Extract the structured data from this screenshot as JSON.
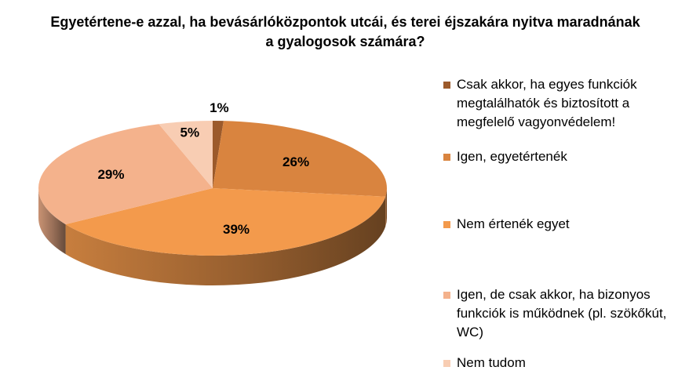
{
  "chart_data": {
    "type": "pie",
    "title": "Egyetértene-e azzal, ha bevásárlóközpontok utcái, és terei éjszakára nyitva maradnának a gyalogosok számára?",
    "slices": [
      {
        "label": "Csak akkor, ha egyes funkciók megtalálhatók és biztosított a megfelelő vagyonvédelem!",
        "value": 1,
        "display": "1%",
        "color": "#9c5a2b"
      },
      {
        "label": "Igen, egyetértenék",
        "value": 26,
        "display": "26%",
        "color": "#d9843f"
      },
      {
        "label": "Nem értenék egyet",
        "value": 39,
        "display": "39%",
        "color": "#f39a4c"
      },
      {
        "label": "Igen, de csak akkor, ha bizonyos funkciók is működnek (pl. szökőkút, WC)",
        "value": 29,
        "display": "29%",
        "color": "#f4b28c"
      },
      {
        "label": "Nem tudom",
        "value": 5,
        "display": "5%",
        "color": "#f8cdb3"
      }
    ],
    "legend_position": "right",
    "style": "3d-pie"
  }
}
